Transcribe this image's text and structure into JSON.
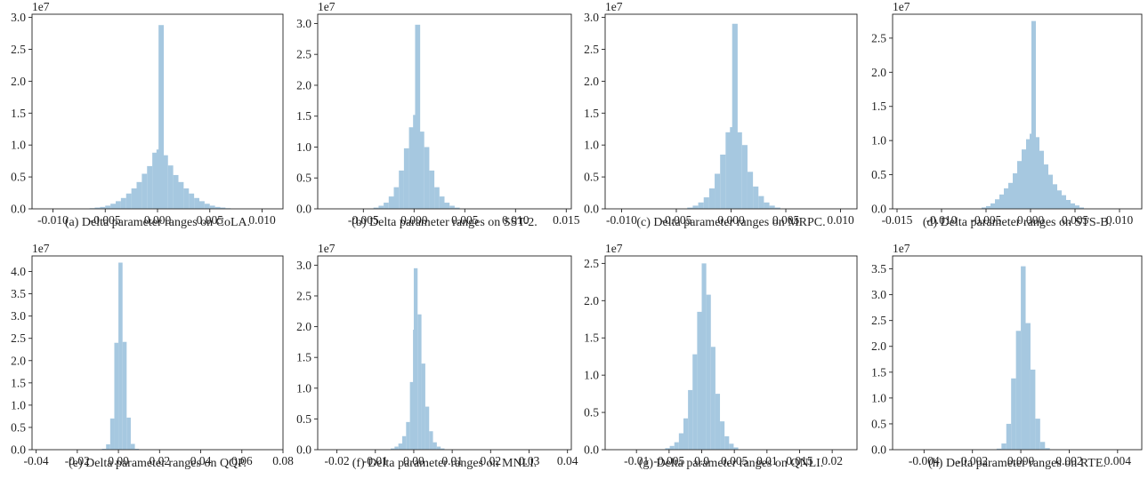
{
  "figure": {
    "colors": {
      "bar": "#a6c8e0",
      "axis": "#222222"
    }
  },
  "chart_data": [
    {
      "type": "bar",
      "caption": "(a) Delta parameter ranges on CoLA.",
      "multiplier": "1e7",
      "xlim": [
        -0.012,
        0.012
      ],
      "ylim": [
        0,
        3.05
      ],
      "xticks": [
        -0.01,
        -0.005,
        0.0,
        0.005,
        0.01
      ],
      "xticklabels": [
        "-0.010",
        "-0.005",
        "0.000",
        "0.005",
        "0.010"
      ],
      "yticks": [
        0,
        0.5,
        1.0,
        1.5,
        2.0,
        2.5,
        3.0
      ],
      "yticklabels": [
        "0.0",
        "0.5",
        "1.0",
        "1.5",
        "2.0",
        "2.5",
        "3.0"
      ],
      "bin_width": 0.0005,
      "bins": [
        [
          -0.0065,
          0.01
        ],
        [
          -0.006,
          0.02
        ],
        [
          -0.0055,
          0.03
        ],
        [
          -0.005,
          0.05
        ],
        [
          -0.0045,
          0.08
        ],
        [
          -0.004,
          0.12
        ],
        [
          -0.0035,
          0.17
        ],
        [
          -0.003,
          0.24
        ],
        [
          -0.0025,
          0.32
        ],
        [
          -0.002,
          0.42
        ],
        [
          -0.0015,
          0.55
        ],
        [
          -0.001,
          0.67
        ],
        [
          -0.0005,
          0.88
        ],
        [
          -0.0001,
          0.93
        ],
        [
          0.0001,
          2.88
        ],
        [
          0.0005,
          0.84
        ],
        [
          0.001,
          0.68
        ],
        [
          0.0015,
          0.53
        ],
        [
          0.002,
          0.42
        ],
        [
          0.0025,
          0.32
        ],
        [
          0.003,
          0.24
        ],
        [
          0.0035,
          0.17
        ],
        [
          0.004,
          0.12
        ],
        [
          0.0045,
          0.08
        ],
        [
          0.005,
          0.05
        ],
        [
          0.0055,
          0.03
        ],
        [
          0.006,
          0.02
        ],
        [
          0.0065,
          0.01
        ]
      ]
    },
    {
      "type": "bar",
      "caption": "(b) Delta parameter ranges on SST-2.",
      "multiplier": "1e7",
      "xlim": [
        -0.0095,
        0.0155
      ],
      "ylim": [
        0,
        3.15
      ],
      "xticks": [
        -0.005,
        0.0,
        0.005,
        0.01,
        0.015
      ],
      "xticklabels": [
        "-0.005",
        "0.000",
        "0.005",
        "0.010",
        "0.015"
      ],
      "yticks": [
        0,
        0.5,
        1.0,
        1.5,
        2.0,
        2.5,
        3.0
      ],
      "yticklabels": [
        "0.0",
        "0.5",
        "1.0",
        "1.5",
        "2.0",
        "2.5",
        "3.0"
      ],
      "bin_width": 0.0005,
      "bins": [
        [
          -0.004,
          0.02
        ],
        [
          -0.0035,
          0.05
        ],
        [
          -0.003,
          0.1
        ],
        [
          -0.0025,
          0.2
        ],
        [
          -0.002,
          0.35
        ],
        [
          -0.0015,
          0.62
        ],
        [
          -0.001,
          0.98
        ],
        [
          -0.0005,
          1.32
        ],
        [
          -0.0001,
          1.52
        ],
        [
          0.0001,
          2.98
        ],
        [
          0.0005,
          1.25
        ],
        [
          0.001,
          1.0
        ],
        [
          0.0015,
          0.62
        ],
        [
          0.002,
          0.35
        ],
        [
          0.0025,
          0.2
        ],
        [
          0.003,
          0.1
        ],
        [
          0.0035,
          0.05
        ],
        [
          0.004,
          0.02
        ]
      ]
    },
    {
      "type": "bar",
      "caption": "(c) Delta parameter ranges on MRPC.",
      "multiplier": "1e7",
      "xlim": [
        -0.0115,
        0.0115
      ],
      "ylim": [
        0,
        3.05
      ],
      "xticks": [
        -0.01,
        -0.005,
        0.0,
        0.005,
        0.01
      ],
      "xticklabels": [
        "-0.010",
        "-0.005",
        "0.000",
        "0.005",
        "0.010"
      ],
      "yticks": [
        0,
        0.5,
        1.0,
        1.5,
        2.0,
        2.5,
        3.0
      ],
      "yticklabels": [
        "0.0",
        "0.5",
        "1.0",
        "1.5",
        "2.0",
        "2.5",
        "3.0"
      ],
      "bin_width": 0.0005,
      "bins": [
        [
          -0.004,
          0.02
        ],
        [
          -0.0035,
          0.05
        ],
        [
          -0.003,
          0.1
        ],
        [
          -0.0025,
          0.18
        ],
        [
          -0.002,
          0.32
        ],
        [
          -0.0015,
          0.55
        ],
        [
          -0.001,
          0.85
        ],
        [
          -0.0005,
          1.2
        ],
        [
          -0.0001,
          1.28
        ],
        [
          0.0001,
          2.9
        ],
        [
          0.0005,
          1.2
        ],
        [
          0.001,
          1.0
        ],
        [
          0.0015,
          0.58
        ],
        [
          0.002,
          0.35
        ],
        [
          0.0025,
          0.2
        ],
        [
          0.003,
          0.1
        ],
        [
          0.0035,
          0.05
        ],
        [
          0.004,
          0.02
        ]
      ]
    },
    {
      "type": "bar",
      "caption": "(d) Delta parameter ranges on STS-B.",
      "multiplier": "1e7",
      "xlim": [
        -0.0155,
        0.0125
      ],
      "ylim": [
        0,
        2.85
      ],
      "xticks": [
        -0.015,
        -0.01,
        -0.005,
        0.0,
        0.005,
        0.01
      ],
      "xticklabels": [
        "-0.015",
        "-0.010",
        "-0.005",
        "0.000",
        "0.005",
        "0.010"
      ],
      "yticks": [
        0,
        0.5,
        1.0,
        1.5,
        2.0,
        2.5
      ],
      "yticklabels": [
        "0.0",
        "0.5",
        "1.0",
        "1.5",
        "2.0",
        "2.5"
      ],
      "bin_width": 0.0005,
      "bins": [
        [
          -0.0055,
          0.02
        ],
        [
          -0.005,
          0.04
        ],
        [
          -0.0045,
          0.08
        ],
        [
          -0.004,
          0.14
        ],
        [
          -0.0035,
          0.21
        ],
        [
          -0.003,
          0.3
        ],
        [
          -0.0025,
          0.38
        ],
        [
          -0.002,
          0.52
        ],
        [
          -0.0015,
          0.7
        ],
        [
          -0.001,
          0.87
        ],
        [
          -0.0005,
          1.02
        ],
        [
          -0.0001,
          1.1
        ],
        [
          0.0001,
          2.75
        ],
        [
          0.0005,
          1.05
        ],
        [
          0.001,
          0.85
        ],
        [
          0.0015,
          0.65
        ],
        [
          0.002,
          0.5
        ],
        [
          0.0025,
          0.36
        ],
        [
          0.003,
          0.27
        ],
        [
          0.0035,
          0.2
        ],
        [
          0.004,
          0.13
        ],
        [
          0.0045,
          0.08
        ],
        [
          0.005,
          0.05
        ],
        [
          0.0055,
          0.02
        ]
      ]
    },
    {
      "type": "bar",
      "caption": "(e) Delta parameter ranges on QQP.",
      "multiplier": "1e7",
      "xlim": [
        -0.042,
        0.08
      ],
      "ylim": [
        0,
        4.35
      ],
      "xticks": [
        -0.04,
        -0.02,
        0.0,
        0.02,
        0.04,
        0.06,
        0.08
      ],
      "xticklabels": [
        "-0.04",
        "-0.02",
        "0.00",
        "0.02",
        "0.04",
        "0.06",
        "0.08"
      ],
      "yticks": [
        0,
        0.5,
        1.0,
        1.5,
        2.0,
        2.5,
        3.0,
        3.5,
        4.0
      ],
      "yticklabels": [
        "0.0",
        "0.5",
        "1.0",
        "1.5",
        "2.0",
        "2.5",
        "3.0",
        "3.5",
        "4.0"
      ],
      "bin_width": 0.002,
      "bins": [
        [
          -0.008,
          0.02
        ],
        [
          -0.006,
          0.12
        ],
        [
          -0.004,
          0.7
        ],
        [
          -0.002,
          2.4
        ],
        [
          0.0,
          4.2
        ],
        [
          0.002,
          2.42
        ],
        [
          0.004,
          0.72
        ],
        [
          0.006,
          0.13
        ],
        [
          0.008,
          0.02
        ]
      ]
    },
    {
      "type": "bar",
      "caption": "(f) Delta parameter ranges on MNLI.",
      "multiplier": "1e7",
      "xlim": [
        -0.025,
        0.041
      ],
      "ylim": [
        0,
        3.15
      ],
      "xticks": [
        -0.02,
        -0.01,
        0.0,
        0.01,
        0.02,
        0.03,
        0.04
      ],
      "xticklabels": [
        "-0.02",
        "-0.01",
        "0.00",
        "0.01",
        "0.02",
        "0.03",
        "0.04"
      ],
      "yticks": [
        0,
        0.5,
        1.0,
        1.5,
        2.0,
        2.5,
        3.0
      ],
      "yticklabels": [
        "0.0",
        "0.5",
        "1.0",
        "1.5",
        "2.0",
        "2.5",
        "3.0"
      ],
      "bin_width": 0.001,
      "bins": [
        [
          -0.006,
          0.02
        ],
        [
          -0.005,
          0.05
        ],
        [
          -0.004,
          0.1
        ],
        [
          -0.003,
          0.22
        ],
        [
          -0.002,
          0.45
        ],
        [
          -0.001,
          1.1
        ],
        [
          -0.0002,
          1.95
        ],
        [
          0.0,
          2.95
        ],
        [
          0.001,
          2.2
        ],
        [
          0.002,
          1.4
        ],
        [
          0.003,
          0.7
        ],
        [
          0.004,
          0.3
        ],
        [
          0.005,
          0.12
        ],
        [
          0.006,
          0.05
        ],
        [
          0.007,
          0.02
        ]
      ]
    },
    {
      "type": "bar",
      "caption": "(g) Delta parameter ranges on QNLI.",
      "multiplier": "1e7",
      "xlim": [
        -0.0148,
        0.0238
      ],
      "ylim": [
        0,
        2.6
      ],
      "xticks": [
        -0.01,
        -0.005,
        0.0,
        0.005,
        0.01,
        0.015,
        0.02
      ],
      "xticklabels": [
        "-0.01",
        "-0.005",
        "0.0",
        "0.005",
        "0.01",
        "0.015",
        "0.02"
      ],
      "yticks": [
        0,
        0.5,
        1.0,
        1.5,
        2.0,
        2.5
      ],
      "yticklabels": [
        "0.0",
        "0.5",
        "1.0",
        "1.5",
        "2.0",
        "2.5"
      ],
      "bin_width": 0.0007,
      "bins": [
        [
          -0.0056,
          0.02
        ],
        [
          -0.0049,
          0.05
        ],
        [
          -0.0042,
          0.1
        ],
        [
          -0.0035,
          0.22
        ],
        [
          -0.0028,
          0.42
        ],
        [
          -0.0021,
          0.8
        ],
        [
          -0.0014,
          1.28
        ],
        [
          -0.0007,
          1.85
        ],
        [
          0.0,
          2.5
        ],
        [
          0.0007,
          2.08
        ],
        [
          0.0014,
          1.38
        ],
        [
          0.0021,
          0.75
        ],
        [
          0.0028,
          0.38
        ],
        [
          0.0035,
          0.18
        ],
        [
          0.0042,
          0.08
        ],
        [
          0.0049,
          0.03
        ]
      ]
    },
    {
      "type": "bar",
      "caption": "(h) Delta parameter ranges on RTE.",
      "multiplier": "1e7",
      "xlim": [
        -0.0053,
        0.005
      ],
      "ylim": [
        0,
        3.75
      ],
      "xticks": [
        -0.004,
        -0.002,
        0.0,
        0.002,
        0.004
      ],
      "xticklabels": [
        "-0.004",
        "-0.002",
        "0.000",
        "0.002",
        "0.004"
      ],
      "yticks": [
        0,
        0.5,
        1.0,
        1.5,
        2.0,
        2.5,
        3.0,
        3.5
      ],
      "yticklabels": [
        "0.0",
        "0.5",
        "1.0",
        "1.5",
        "2.0",
        "2.5",
        "3.0",
        "3.5"
      ],
      "bin_width": 0.0002,
      "bins": [
        [
          -0.001,
          0.02
        ],
        [
          -0.0008,
          0.12
        ],
        [
          -0.0006,
          0.5
        ],
        [
          -0.0004,
          1.38
        ],
        [
          -0.0002,
          2.3
        ],
        [
          0.0,
          3.55
        ],
        [
          0.0002,
          2.45
        ],
        [
          0.0004,
          1.55
        ],
        [
          0.0006,
          0.6
        ],
        [
          0.0008,
          0.15
        ],
        [
          0.001,
          0.03
        ]
      ]
    }
  ]
}
